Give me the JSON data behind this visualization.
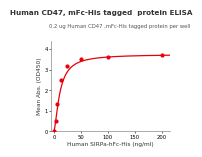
{
  "title": "Human CD47, mFc-His tagged  protein ELISA",
  "subtitle": "0.2 ug Human CD47 ,mFc-His tagged protein per well",
  "xlabel": "Human SIRPa-hFc-His (ng/ml)",
  "ylabel": "Mean Abs. (OD450)",
  "x_data": [
    0,
    3.125,
    6.25,
    12.5,
    25,
    50,
    100,
    200
  ],
  "y_data": [
    0.04,
    0.5,
    1.35,
    2.5,
    3.2,
    3.5,
    3.62,
    3.72
  ],
  "xlim": [
    -5,
    215
  ],
  "ylim": [
    0,
    4.4
  ],
  "xticks": [
    0,
    50,
    100,
    150,
    200
  ],
  "yticks": [
    0,
    1,
    2,
    3,
    4
  ],
  "line_color": "#e8000a",
  "marker_color": "#e8000a",
  "background_color": "#ffffff",
  "title_fontsize": 5.2,
  "subtitle_fontsize": 3.8,
  "axis_label_fontsize": 4.2,
  "tick_fontsize": 3.8,
  "hill_Ymax": 3.75,
  "hill_EC50": 11.0,
  "hill_n": 1.5,
  "hill_baseline": 0.04
}
